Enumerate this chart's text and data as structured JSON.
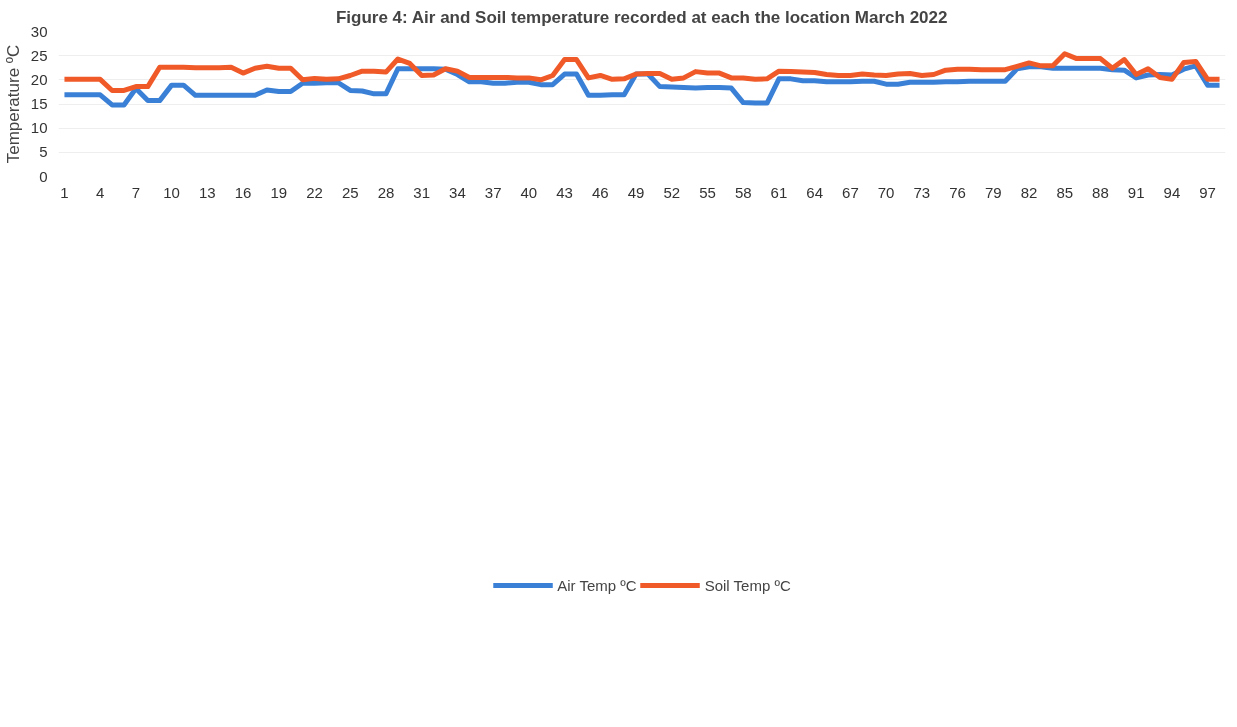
{
  "chart_data": {
    "type": "line",
    "title": "Figure 4: Air and Soil temperature recorded at each the location March 2022",
    "ylabel": "Temperature ºC",
    "x": [
      1,
      2,
      3,
      4,
      5,
      6,
      7,
      8,
      9,
      10,
      11,
      12,
      13,
      14,
      15,
      16,
      17,
      18,
      19,
      20,
      21,
      22,
      23,
      24,
      25,
      26,
      27,
      28,
      29,
      30,
      31,
      32,
      33,
      34,
      35,
      36,
      37,
      38,
      39,
      40,
      41,
      42,
      43,
      44,
      45,
      46,
      47,
      48,
      49,
      50,
      51,
      52,
      53,
      54,
      55,
      56,
      57,
      58,
      59,
      60,
      61,
      62,
      63,
      64,
      65,
      66,
      67,
      68,
      69,
      70,
      71,
      72,
      73,
      74,
      75,
      76,
      77,
      78,
      79,
      80,
      81,
      82,
      83,
      84,
      85,
      86,
      87,
      88,
      89,
      90,
      91,
      92,
      93,
      94,
      95,
      96,
      97,
      98
    ],
    "xlim": [
      0.5,
      98.5
    ],
    "xticks": [
      1,
      4,
      7,
      10,
      13,
      16,
      19,
      22,
      25,
      28,
      31,
      34,
      37,
      40,
      43,
      46,
      49,
      52,
      55,
      58,
      61,
      64,
      67,
      70,
      73,
      76,
      79,
      82,
      85,
      88,
      91,
      94,
      97
    ],
    "ylim": [
      0,
      30
    ],
    "yticks": [
      0,
      5,
      10,
      15,
      20,
      25,
      30
    ],
    "grid": "y",
    "legend": "bottom",
    "line_style": "solid",
    "series": [
      {
        "name": "Air Temp ºC",
        "color": "#3a80d6",
        "values": [
          16.9,
          16.9,
          16.9,
          16.9,
          14.8,
          14.8,
          18.2,
          15.7,
          15.7,
          18.9,
          18.9,
          16.8,
          16.8,
          16.8,
          16.8,
          16.8,
          16.8,
          17.9,
          17.6,
          17.6,
          19.3,
          19.3,
          19.4,
          19.4,
          17.8,
          17.7,
          17.1,
          17.1,
          22.3,
          22.3,
          22.3,
          22.3,
          22.2,
          21.1,
          19.6,
          19.6,
          19.3,
          19.3,
          19.5,
          19.5,
          19.0,
          19.0,
          21.2,
          21.2,
          16.8,
          16.8,
          16.9,
          16.9,
          21.2,
          21.2,
          18.6,
          18.5,
          18.4,
          18.3,
          18.4,
          18.4,
          18.3,
          15.3,
          15.2,
          15.2,
          20.2,
          20.2,
          19.8,
          19.8,
          19.6,
          19.6,
          19.6,
          19.7,
          19.7,
          19.1,
          19.1,
          19.5,
          19.5,
          19.5,
          19.6,
          19.6,
          19.7,
          19.7,
          19.7,
          19.7,
          22.3,
          22.7,
          22.7,
          22.4,
          22.4,
          22.4,
          22.4,
          22.4,
          22.1,
          22.0,
          20.4,
          21.0,
          21.1,
          21.0,
          22.2,
          22.9,
          18.9,
          18.9
        ]
      },
      {
        "name": "Soil Temp ºC",
        "color": "#f05a28",
        "values": [
          20.1,
          20.1,
          20.1,
          20.1,
          17.8,
          17.8,
          18.6,
          18.6,
          22.6,
          22.6,
          22.6,
          22.5,
          22.5,
          22.5,
          22.6,
          21.4,
          22.4,
          22.8,
          22.4,
          22.4,
          20.0,
          20.3,
          20.1,
          20.2,
          20.9,
          21.8,
          21.8,
          21.6,
          24.3,
          23.4,
          20.9,
          21.0,
          22.3,
          21.8,
          20.5,
          20.5,
          20.5,
          20.5,
          20.4,
          20.4,
          20.0,
          20.9,
          24.2,
          24.2,
          20.4,
          20.9,
          20.1,
          20.2,
          21.2,
          21.3,
          21.3,
          20.1,
          20.4,
          21.7,
          21.4,
          21.4,
          20.4,
          20.4,
          20.1,
          20.2,
          21.8,
          21.7,
          21.6,
          21.5,
          21.1,
          20.9,
          20.9,
          21.2,
          21.0,
          20.9,
          21.2,
          21.3,
          20.9,
          21.1,
          22.0,
          22.2,
          22.2,
          22.1,
          22.1,
          22.1,
          22.8,
          23.5,
          22.9,
          22.9,
          25.4,
          24.4,
          24.4,
          24.4,
          22.4,
          24.2,
          21.1,
          22.3,
          20.5,
          20.1,
          23.6,
          23.8,
          20.1,
          20.1
        ]
      }
    ]
  }
}
